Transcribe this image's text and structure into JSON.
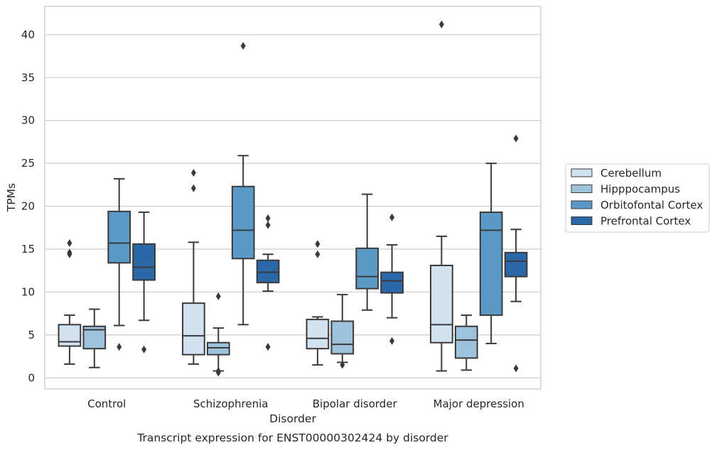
{
  "chart_data": {
    "type": "box",
    "title": "Transcript expression for ENST00000302424 by disorder",
    "xlabel": "Disorder",
    "ylabel": "TPMs",
    "ylim": [
      -1.3,
      43.3
    ],
    "yticks": [
      0,
      5,
      10,
      15,
      20,
      25,
      30,
      35,
      40
    ],
    "grid": "horizontal",
    "legend_position": "right",
    "categories": [
      "Control",
      "Schizophrenia",
      "Bipolar disorder",
      "Major depression"
    ],
    "series": [
      {
        "name": "Cerebellum",
        "color": "#d3e2ef",
        "boxes": [
          {
            "whislo": 1.6,
            "q1": 3.7,
            "med": 4.2,
            "q3": 6.2,
            "whishi": 7.3,
            "fliers": [
              15.7,
              14.6,
              14.4
            ]
          },
          {
            "whislo": 1.6,
            "q1": 2.7,
            "med": 4.9,
            "q3": 8.7,
            "whishi": 15.8,
            "fliers": [
              23.9,
              22.1
            ]
          },
          {
            "whislo": 1.5,
            "q1": 3.4,
            "med": 4.6,
            "q3": 6.8,
            "whishi": 7.1,
            "fliers": [
              15.6,
              14.4
            ]
          },
          {
            "whislo": 0.8,
            "q1": 4.1,
            "med": 6.2,
            "q3": 13.1,
            "whishi": 16.5,
            "fliers": [
              41.2
            ]
          }
        ]
      },
      {
        "name": "Hipppocampus",
        "color": "#9cc2dc",
        "boxes": [
          {
            "whislo": 1.2,
            "q1": 3.4,
            "med": 5.6,
            "q3": 6.0,
            "whishi": 8.0,
            "fliers": []
          },
          {
            "whislo": 0.8,
            "q1": 2.7,
            "med": 3.5,
            "q3": 4.1,
            "whishi": 5.8,
            "fliers": [
              9.5,
              0.8,
              0.6
            ]
          },
          {
            "whislo": 1.8,
            "q1": 2.8,
            "med": 3.9,
            "q3": 6.6,
            "whishi": 9.7,
            "fliers": [
              1.5
            ]
          },
          {
            "whislo": 0.9,
            "q1": 2.3,
            "med": 4.4,
            "q3": 6.0,
            "whishi": 7.3,
            "fliers": []
          }
        ]
      },
      {
        "name": "Orbitofontal Cortex",
        "color": "#5b9ac7",
        "boxes": [
          {
            "whislo": 6.1,
            "q1": 13.4,
            "med": 15.7,
            "q3": 19.4,
            "whishi": 23.2,
            "fliers": [
              3.6
            ]
          },
          {
            "whislo": 6.2,
            "q1": 13.9,
            "med": 17.2,
            "q3": 22.3,
            "whishi": 25.9,
            "fliers": [
              38.7
            ]
          },
          {
            "whislo": 7.9,
            "q1": 10.4,
            "med": 11.8,
            "q3": 15.1,
            "whishi": 21.4,
            "fliers": []
          },
          {
            "whislo": 4.0,
            "q1": 7.3,
            "med": 17.2,
            "q3": 19.3,
            "whishi": 25.0,
            "fliers": []
          }
        ]
      },
      {
        "name": "Prefrontal Cortex",
        "color": "#2a68a8",
        "boxes": [
          {
            "whislo": 6.7,
            "q1": 11.4,
            "med": 12.9,
            "q3": 15.6,
            "whishi": 19.3,
            "fliers": [
              3.3
            ]
          },
          {
            "whislo": 10.1,
            "q1": 11.1,
            "med": 12.3,
            "q3": 13.7,
            "whishi": 14.4,
            "fliers": [
              18.6,
              17.8,
              3.6
            ]
          },
          {
            "whislo": 7.0,
            "q1": 9.9,
            "med": 11.3,
            "q3": 12.3,
            "whishi": 15.5,
            "fliers": [
              18.7,
              4.3
            ]
          },
          {
            "whislo": 8.9,
            "q1": 11.8,
            "med": 13.6,
            "q3": 14.6,
            "whishi": 17.3,
            "fliers": [
              27.9,
              1.1
            ]
          }
        ]
      }
    ]
  }
}
